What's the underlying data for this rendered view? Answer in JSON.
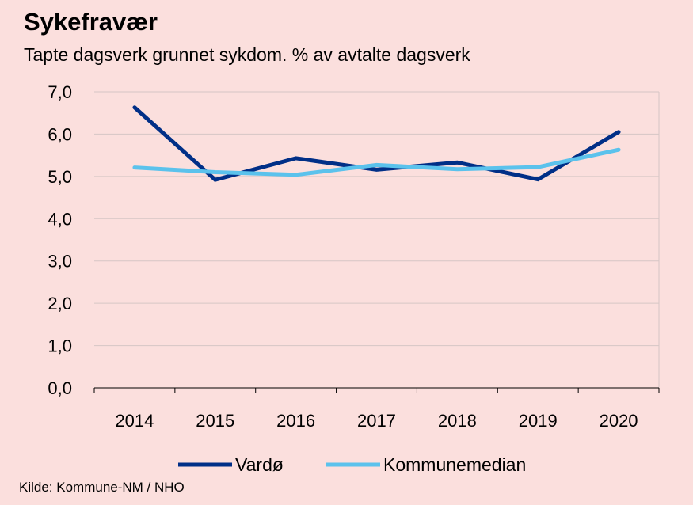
{
  "chart_data": {
    "type": "line",
    "title": "Sykefravær",
    "subtitle": "Tapte dagsverk grunnet sykdom. % av avtalte dagsverk",
    "xlabel": "",
    "ylabel": "",
    "categories": [
      "2014",
      "2015",
      "2016",
      "2017",
      "2018",
      "2019",
      "2020"
    ],
    "ylim": [
      0,
      7
    ],
    "yticks": [
      "0,0",
      "1,0",
      "2,0",
      "3,0",
      "4,0",
      "5,0",
      "6,0",
      "7,0"
    ],
    "grid": true,
    "legend_position": "bottom",
    "series": [
      {
        "name": "Vardø",
        "color": "#002f87",
        "values": [
          6.63,
          4.92,
          5.43,
          5.16,
          5.33,
          4.93,
          6.05
        ]
      },
      {
        "name": "Kommunemedian",
        "color": "#5bc2ec",
        "values": [
          5.21,
          5.1,
          5.04,
          5.27,
          5.17,
          5.22,
          5.63
        ]
      }
    ],
    "source": "Kilde: Kommune-NM / NHO"
  }
}
